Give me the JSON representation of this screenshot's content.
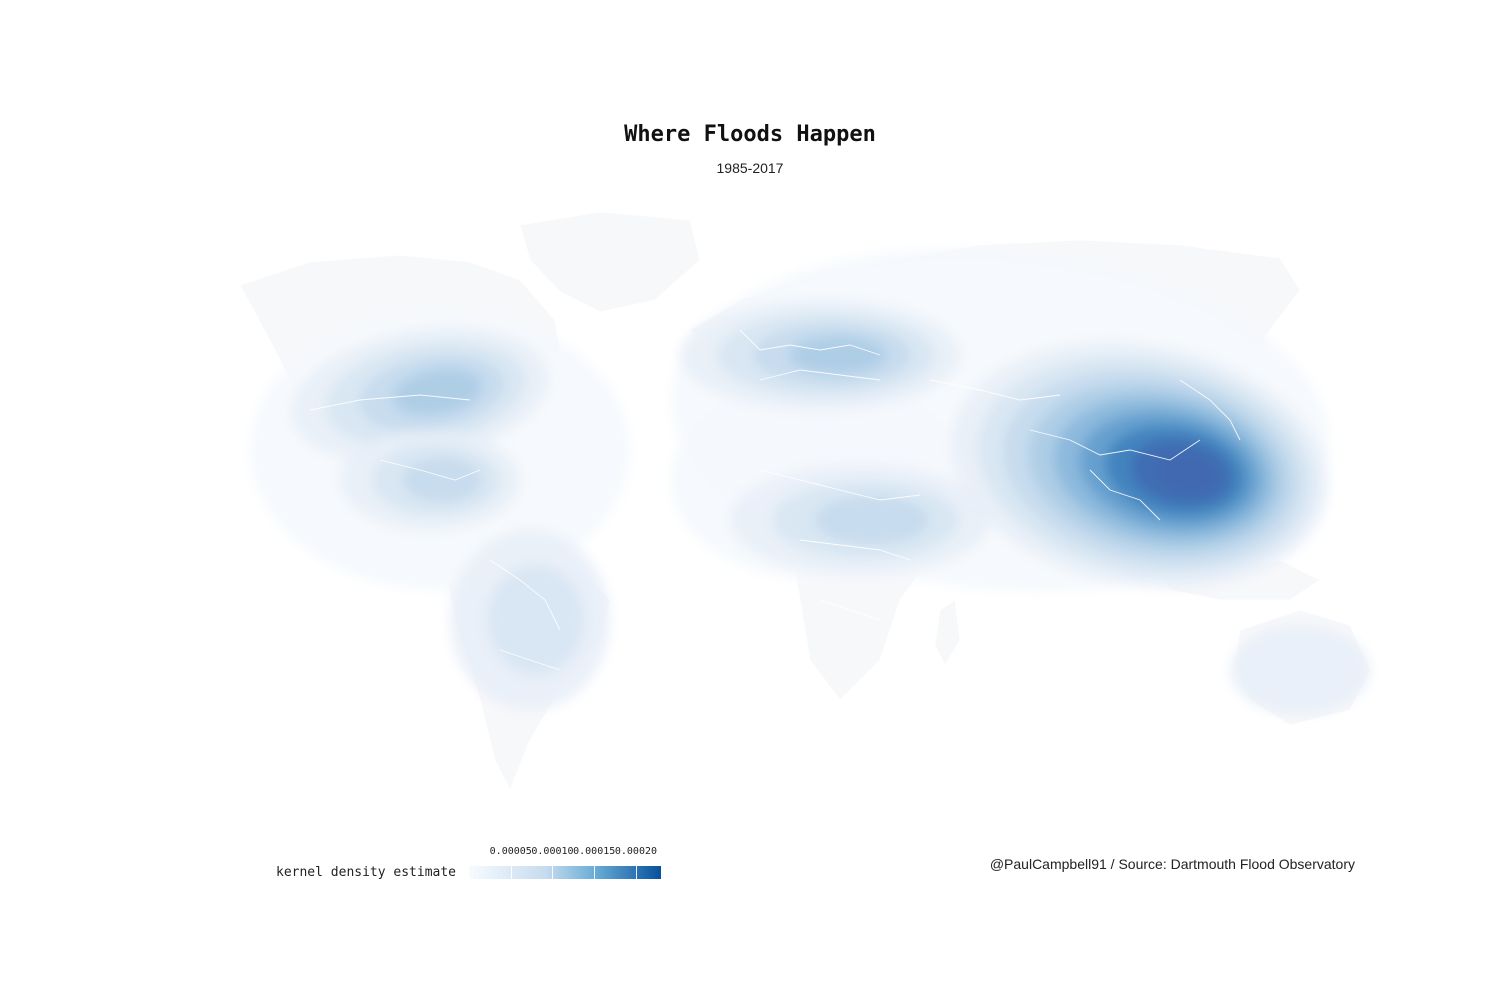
{
  "title": "Where Floods Happen",
  "subtitle": "1985-2017",
  "legend": {
    "title": "kernel density estimate",
    "ticks": [
      "0.00005",
      "0.00010",
      "0.00015",
      "0.00020"
    ],
    "tick_values": [
      5e-05,
      0.0001,
      0.00015,
      0.0002
    ],
    "range": [
      0,
      0.00023
    ],
    "color_low": "#f7fbff",
    "color_high": "#08519c"
  },
  "caption": "@PaulCampbell91 / Source: Dartmouth Flood Observatory",
  "colors": {
    "land": "#f7f8fa",
    "border": "#ffffff",
    "density_scale": [
      "#f5f8fd",
      "#e7eff8",
      "#d6e5f2",
      "#c3d9ec",
      "#a9cbe4",
      "#86b5da",
      "#5f9bcc",
      "#3d7fbc",
      "#4169b0"
    ]
  },
  "hotspots": [
    {
      "region": "South and Southeast Asia",
      "level": 9
    },
    {
      "region": "Eastern North America",
      "level": 4
    },
    {
      "region": "Europe",
      "level": 4
    },
    {
      "region": "Central America and Caribbean",
      "level": 3
    },
    {
      "region": "Central Africa",
      "level": 3
    },
    {
      "region": "South America",
      "level": 2
    },
    {
      "region": "Australia",
      "level": 1
    }
  ]
}
